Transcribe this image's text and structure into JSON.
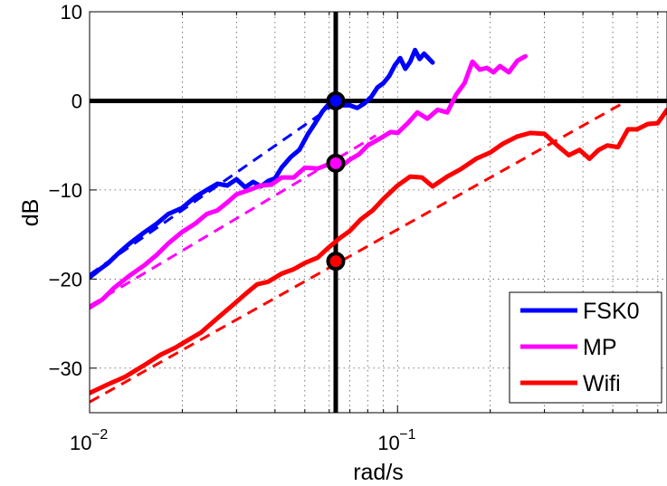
{
  "chart_data": {
    "type": "line",
    "title": "",
    "xlabel": "rad/s",
    "ylabel": "dB",
    "x_scale": "log",
    "xlim": [
      0.01,
      0.75
    ],
    "ylim": [
      -35,
      10
    ],
    "x_ticks": [
      {
        "value": 0.01,
        "mantissa": "10",
        "exponent": "−2"
      },
      {
        "value": 0.1,
        "mantissa": "10",
        "exponent": "−1"
      }
    ],
    "y_ticks": [
      {
        "value": 10,
        "label": "10"
      },
      {
        "value": 0,
        "label": "0"
      },
      {
        "value": -10,
        "label": "−10"
      },
      {
        "value": -20,
        "label": "−20"
      },
      {
        "value": -30,
        "label": "−30"
      }
    ],
    "grid": true,
    "legend_position": "bottom-right",
    "reference_lines": {
      "horizontal_y": 0,
      "vertical_x": 0.063,
      "color": "#000000"
    },
    "series": [
      {
        "name": "FSK0",
        "color": "#0000ff",
        "x": [
          0.01,
          0.0107,
          0.0115,
          0.0125,
          0.0135,
          0.015,
          0.0165,
          0.018,
          0.02,
          0.022,
          0.024,
          0.026,
          0.028,
          0.03,
          0.032,
          0.034,
          0.036,
          0.038,
          0.04,
          0.042,
          0.045,
          0.048,
          0.051,
          0.054,
          0.057,
          0.06,
          0.063,
          0.066,
          0.07,
          0.074,
          0.078,
          0.082,
          0.086,
          0.09,
          0.094,
          0.098,
          0.102,
          0.106,
          0.11,
          0.114,
          0.118,
          0.122,
          0.126,
          0.13
        ],
        "y": [
          -19.8,
          -19.0,
          -18.2,
          -17.0,
          -16.0,
          -14.8,
          -13.8,
          -12.7,
          -12.0,
          -10.8,
          -10.0,
          -9.3,
          -9.5,
          -8.8,
          -9.7,
          -9.1,
          -9.6,
          -9.0,
          -8.7,
          -7.5,
          -6.3,
          -5.5,
          -3.8,
          -2.5,
          -1.2,
          -0.3,
          -0.2,
          -0.5,
          -0.5,
          -0.8,
          -0.3,
          0.4,
          1.5,
          2.0,
          2.8,
          4.0,
          4.8,
          3.6,
          4.4,
          5.7,
          4.7,
          5.3,
          4.8,
          4.3
        ]
      },
      {
        "name": "MP",
        "color": "#ff00ff",
        "x": [
          0.01,
          0.011,
          0.012,
          0.0135,
          0.015,
          0.0165,
          0.018,
          0.02,
          0.022,
          0.024,
          0.026,
          0.028,
          0.03,
          0.033,
          0.036,
          0.039,
          0.042,
          0.046,
          0.05,
          0.055,
          0.06,
          0.065,
          0.07,
          0.075,
          0.08,
          0.085,
          0.09,
          0.095,
          0.1,
          0.108,
          0.116,
          0.125,
          0.135,
          0.145,
          0.155,
          0.165,
          0.175,
          0.185,
          0.195,
          0.205,
          0.215,
          0.23,
          0.245,
          0.26
        ],
        "y": [
          -23.2,
          -22.3,
          -21.0,
          -19.6,
          -18.5,
          -17.3,
          -16.0,
          -14.7,
          -13.8,
          -12.7,
          -12.3,
          -11.4,
          -10.5,
          -10.0,
          -9.5,
          -9.4,
          -8.6,
          -8.6,
          -7.5,
          -7.6,
          -7.1,
          -7.5,
          -6.6,
          -6.0,
          -5.0,
          -4.5,
          -4.0,
          -3.5,
          -3.6,
          -2.5,
          -1.3,
          -2.0,
          -1.0,
          -1.3,
          0.7,
          2.0,
          4.4,
          3.5,
          3.7,
          3.2,
          3.9,
          3.2,
          4.5,
          5.0
        ]
      },
      {
        "name": "Wifi",
        "color": "#ff0000",
        "x": [
          0.01,
          0.0115,
          0.013,
          0.015,
          0.017,
          0.019,
          0.021,
          0.023,
          0.026,
          0.029,
          0.032,
          0.035,
          0.038,
          0.042,
          0.046,
          0.05,
          0.055,
          0.06,
          0.065,
          0.07,
          0.076,
          0.083,
          0.09,
          0.1,
          0.11,
          0.12,
          0.13,
          0.145,
          0.16,
          0.18,
          0.2,
          0.22,
          0.245,
          0.27,
          0.3,
          0.33,
          0.36,
          0.39,
          0.42,
          0.45,
          0.48,
          0.52,
          0.56,
          0.6,
          0.65,
          0.7,
          0.75
        ],
        "y": [
          -32.8,
          -31.8,
          -31.0,
          -29.7,
          -28.5,
          -27.7,
          -26.8,
          -26.0,
          -24.4,
          -23.0,
          -21.7,
          -20.6,
          -20.3,
          -19.4,
          -18.9,
          -18.2,
          -17.6,
          -16.4,
          -15.4,
          -14.6,
          -13.3,
          -12.3,
          -11.0,
          -9.5,
          -8.5,
          -8.6,
          -9.6,
          -8.5,
          -7.7,
          -6.5,
          -5.8,
          -4.8,
          -4.0,
          -3.6,
          -3.7,
          -5.0,
          -6.1,
          -5.5,
          -6.5,
          -5.5,
          -5.0,
          -5.2,
          -3.2,
          -3.2,
          -2.6,
          -2.5,
          -1.0
        ]
      }
    ],
    "fits": [
      {
        "color": "#0000ff",
        "x": [
          0.01,
          0.063
        ],
        "y": [
          -19.5,
          -0.3
        ]
      },
      {
        "color": "#ff00ff",
        "x": [
          0.01,
          0.085
        ],
        "y": [
          -23.0,
          -3.9
        ]
      },
      {
        "color": "#ff0000",
        "x": [
          0.01,
          0.55
        ],
        "y": [
          -33.8,
          -0.1
        ]
      }
    ],
    "markers": [
      {
        "x": 0.063,
        "y": 0.0,
        "fill": "#0000ff"
      },
      {
        "x": 0.063,
        "y": -7.0,
        "fill": "#ff00ff"
      },
      {
        "x": 0.063,
        "y": -18.0,
        "fill": "#ff0000"
      }
    ]
  }
}
